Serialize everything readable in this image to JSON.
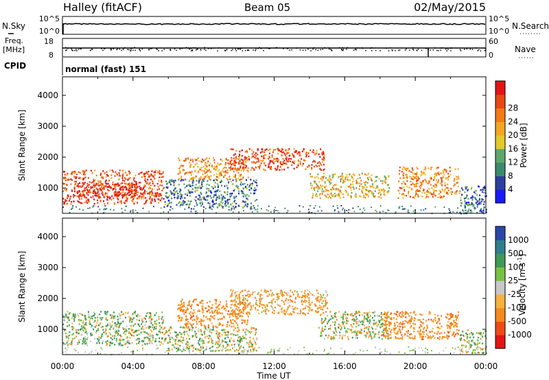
{
  "header": {
    "station": "Halley (fitACF)",
    "beam": "Beam 05",
    "date": "02/May/2015"
  },
  "top_panels": {
    "nsky_label": "N.Sky",
    "nsearch_label": "N.Search",
    "nsky_ticks_left": [
      "10^5",
      "10^0"
    ],
    "nsky_ticks_right": [
      "10^5",
      "10^0"
    ],
    "freq_label": "Freq.",
    "freq_unit": "[MHz]",
    "freq_ticks_left": [
      "18",
      "8"
    ],
    "nave_label": "Nave",
    "nave_ticks_right": [
      "60",
      "0"
    ],
    "cpid_label": "CPID",
    "cpid_text": "normal (fast) 151"
  },
  "colors": {
    "power_scale": [
      "#1a1aff",
      "#2d3f9e",
      "#3a8a6e",
      "#5da76b",
      "#e3c92a",
      "#f6a524",
      "#f57a14",
      "#e84814",
      "#e31414"
    ],
    "velocity_scale": [
      "#e31414",
      "#f14a17",
      "#f68a1c",
      "#f5b23c",
      "#c8c8c8",
      "#79c244",
      "#3e9a57",
      "#2f7f8f",
      "#2a47a8"
    ]
  },
  "chart_data": [
    {
      "type": "heatmap",
      "name": "power",
      "xlabel": "Time UT",
      "ylabel": "Slant Range [km]",
      "xlim": [
        0,
        24
      ],
      "ylim": [
        180,
        4600
      ],
      "yticks": [
        "1000",
        "2000",
        "3000",
        "4000"
      ],
      "xticks": [
        "00:00",
        "04:00",
        "08:00",
        "12:00",
        "16:00",
        "20:00",
        "00:00"
      ],
      "colorbar_label": "Power [dB]",
      "colorbar_ticks": [
        "4",
        "8",
        "12",
        "16",
        "20",
        "24",
        "28"
      ],
      "bands": [
        {
          "t0": 0.0,
          "t1": 5.7,
          "r0": 500,
          "r1": 1600,
          "value": 24
        },
        {
          "t0": 0.5,
          "t1": 4.5,
          "r0": 700,
          "r1": 1200,
          "value": 28
        },
        {
          "t0": 5.7,
          "t1": 11.0,
          "r0": 350,
          "r1": 1300,
          "value": 8
        },
        {
          "t0": 6.5,
          "t1": 10.5,
          "r0": 1300,
          "r1": 2000,
          "value": 20
        },
        {
          "t0": 9.5,
          "t1": 14.8,
          "r0": 1600,
          "r1": 2300,
          "value": 24
        },
        {
          "t0": 14.0,
          "t1": 18.5,
          "r0": 700,
          "r1": 1500,
          "value": 16
        },
        {
          "t0": 19.0,
          "t1": 22.5,
          "r0": 700,
          "r1": 1700,
          "value": 20
        },
        {
          "t0": 22.5,
          "t1": 24.0,
          "r0": 200,
          "r1": 1100,
          "value": 8
        }
      ]
    },
    {
      "type": "heatmap",
      "name": "velocity",
      "xlabel": "Time UT",
      "ylabel": "Slant Range [km]",
      "xlim": [
        0,
        24
      ],
      "ylim": [
        180,
        4600
      ],
      "yticks": [
        "1000",
        "2000",
        "3000",
        "4000"
      ],
      "xticks": [
        "00:00",
        "04:00",
        "08:00",
        "12:00",
        "16:00",
        "20:00",
        "00:00"
      ],
      "colorbar_label": "Velocity [m s",
      "colorbar_label_sup": "-1",
      "colorbar_label_end": "]",
      "colorbar_ticks": [
        "1000",
        "500",
        "100",
        "25",
        "-25",
        "-100",
        "-500",
        "-1000"
      ],
      "bands": [
        {
          "t0": 0.0,
          "t1": 5.7,
          "r0": 500,
          "r1": 1600,
          "value": 100
        },
        {
          "t0": 5.7,
          "t1": 11.0,
          "r0": 300,
          "r1": 1100,
          "value": 0
        },
        {
          "t0": 6.5,
          "t1": 10.5,
          "r0": 1100,
          "r1": 2000,
          "value": -300
        },
        {
          "t0": 9.5,
          "t1": 15.0,
          "r0": 1500,
          "r1": 2300,
          "value": -200
        },
        {
          "t0": 14.5,
          "t1": 18.5,
          "r0": 700,
          "r1": 1600,
          "value": 50
        },
        {
          "t0": 18.0,
          "t1": 22.5,
          "r0": 700,
          "r1": 1600,
          "value": -300
        },
        {
          "t0": 22.5,
          "t1": 24.0,
          "r0": 250,
          "r1": 1000,
          "value": 50
        }
      ]
    }
  ]
}
